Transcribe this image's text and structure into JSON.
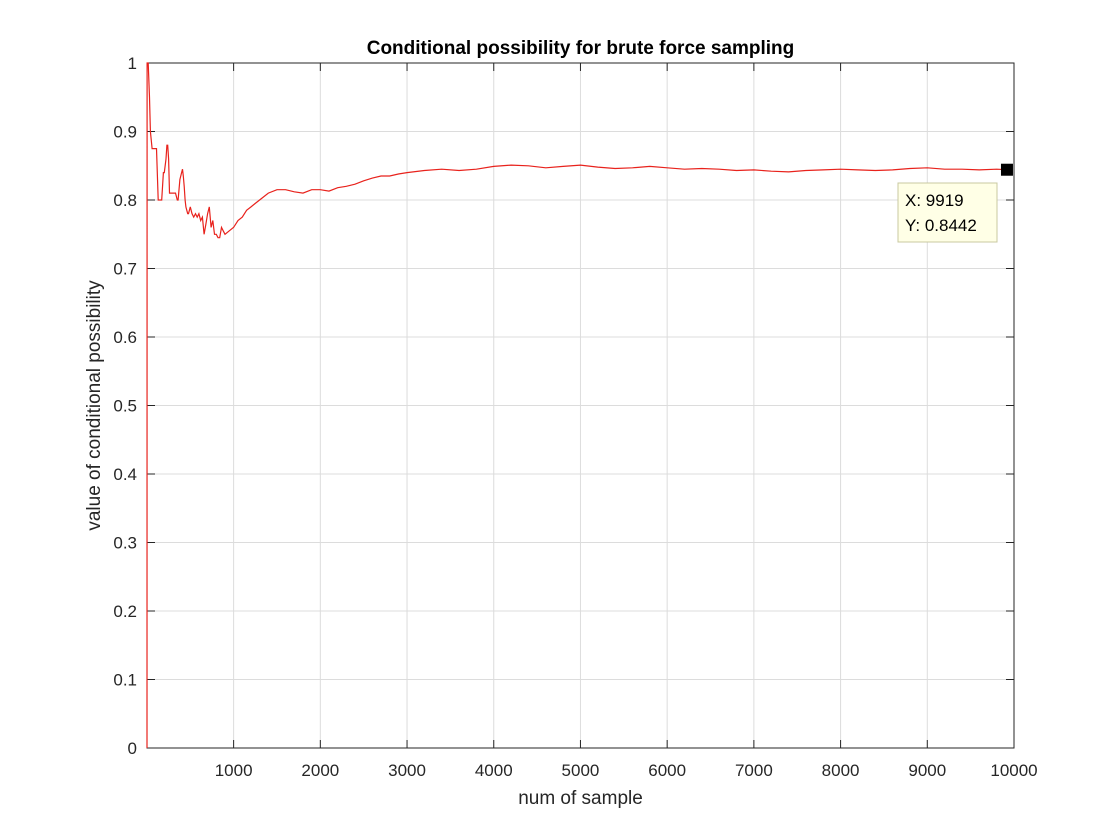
{
  "window": {
    "title": "Conditional possibility for brute force sampling"
  },
  "chart_data": {
    "type": "line",
    "title": "Conditional possibility for brute force sampling",
    "xlabel": "num of sample",
    "ylabel": "value of conditional possibility",
    "xlim": [
      1,
      10000
    ],
    "ylim": [
      0,
      1
    ],
    "xticks": [
      1000,
      2000,
      3000,
      4000,
      5000,
      6000,
      7000,
      8000,
      9000,
      10000
    ],
    "yticks": [
      0,
      0.1,
      0.2,
      0.3,
      0.4,
      0.5,
      0.6,
      0.7,
      0.8,
      0.9,
      1
    ],
    "xtick_labels": [
      "1000",
      "2000",
      "3000",
      "4000",
      "5000",
      "6000",
      "7000",
      "8000",
      "9000",
      "10000"
    ],
    "ytick_labels": [
      "0",
      "0.1",
      "0.2",
      "0.3",
      "0.4",
      "0.5",
      "0.6",
      "0.7",
      "0.8",
      "0.9",
      "1"
    ],
    "grid": true,
    "legend": "none",
    "series": [
      {
        "color": "#e8221c",
        "x": [
          1,
          2,
          15,
          30,
          40,
          60,
          80,
          100,
          110,
          130,
          150,
          170,
          190,
          200,
          220,
          230,
          240,
          250,
          260,
          270,
          290,
          310,
          330,
          350,
          360,
          380,
          400,
          410,
          420,
          430,
          440,
          450,
          460,
          470,
          480,
          500,
          520,
          540,
          560,
          580,
          600,
          620,
          640,
          660,
          680,
          700,
          720,
          740,
          760,
          780,
          800,
          820,
          840,
          860,
          880,
          900,
          950,
          1000,
          1050,
          1100,
          1150,
          1200,
          1250,
          1300,
          1400,
          1500,
          1600,
          1700,
          1800,
          1900,
          2000,
          2100,
          2200,
          2300,
          2400,
          2500,
          2600,
          2700,
          2800,
          2900,
          3000,
          3200,
          3400,
          3600,
          3800,
          4000,
          4200,
          4400,
          4600,
          4800,
          5000,
          5200,
          5400,
          5600,
          5800,
          6000,
          6200,
          6400,
          6600,
          6800,
          7000,
          7200,
          7400,
          7600,
          7800,
          8000,
          8200,
          8400,
          8600,
          8800,
          9000,
          9200,
          9400,
          9600,
          9800,
          9919
        ],
        "y": [
          0,
          1,
          1,
          0.95,
          0.9,
          0.875,
          0.875,
          0.875,
          0.875,
          0.8,
          0.8,
          0.8,
          0.84,
          0.84,
          0.86,
          0.88,
          0.88,
          0.86,
          0.81,
          0.81,
          0.81,
          0.81,
          0.81,
          0.8,
          0.8,
          0.83,
          0.84,
          0.845,
          0.835,
          0.82,
          0.8,
          0.79,
          0.785,
          0.78,
          0.78,
          0.79,
          0.78,
          0.775,
          0.78,
          0.775,
          0.78,
          0.77,
          0.775,
          0.75,
          0.765,
          0.78,
          0.79,
          0.76,
          0.77,
          0.75,
          0.75,
          0.745,
          0.745,
          0.76,
          0.755,
          0.75,
          0.755,
          0.76,
          0.77,
          0.775,
          0.785,
          0.79,
          0.795,
          0.8,
          0.81,
          0.815,
          0.815,
          0.812,
          0.81,
          0.815,
          0.815,
          0.813,
          0.818,
          0.82,
          0.823,
          0.828,
          0.832,
          0.835,
          0.835,
          0.838,
          0.84,
          0.843,
          0.845,
          0.843,
          0.845,
          0.849,
          0.851,
          0.85,
          0.847,
          0.849,
          0.851,
          0.848,
          0.846,
          0.847,
          0.849,
          0.847,
          0.845,
          0.846,
          0.845,
          0.843,
          0.844,
          0.842,
          0.841,
          0.843,
          0.844,
          0.845,
          0.844,
          0.843,
          0.844,
          0.846,
          0.847,
          0.845,
          0.845,
          0.844,
          0.845,
          0.8442
        ]
      }
    ],
    "datatip": {
      "x_text": "X: 9919",
      "y_text": "Y: 0.8442",
      "x": 9919,
      "y": 0.8442
    }
  }
}
